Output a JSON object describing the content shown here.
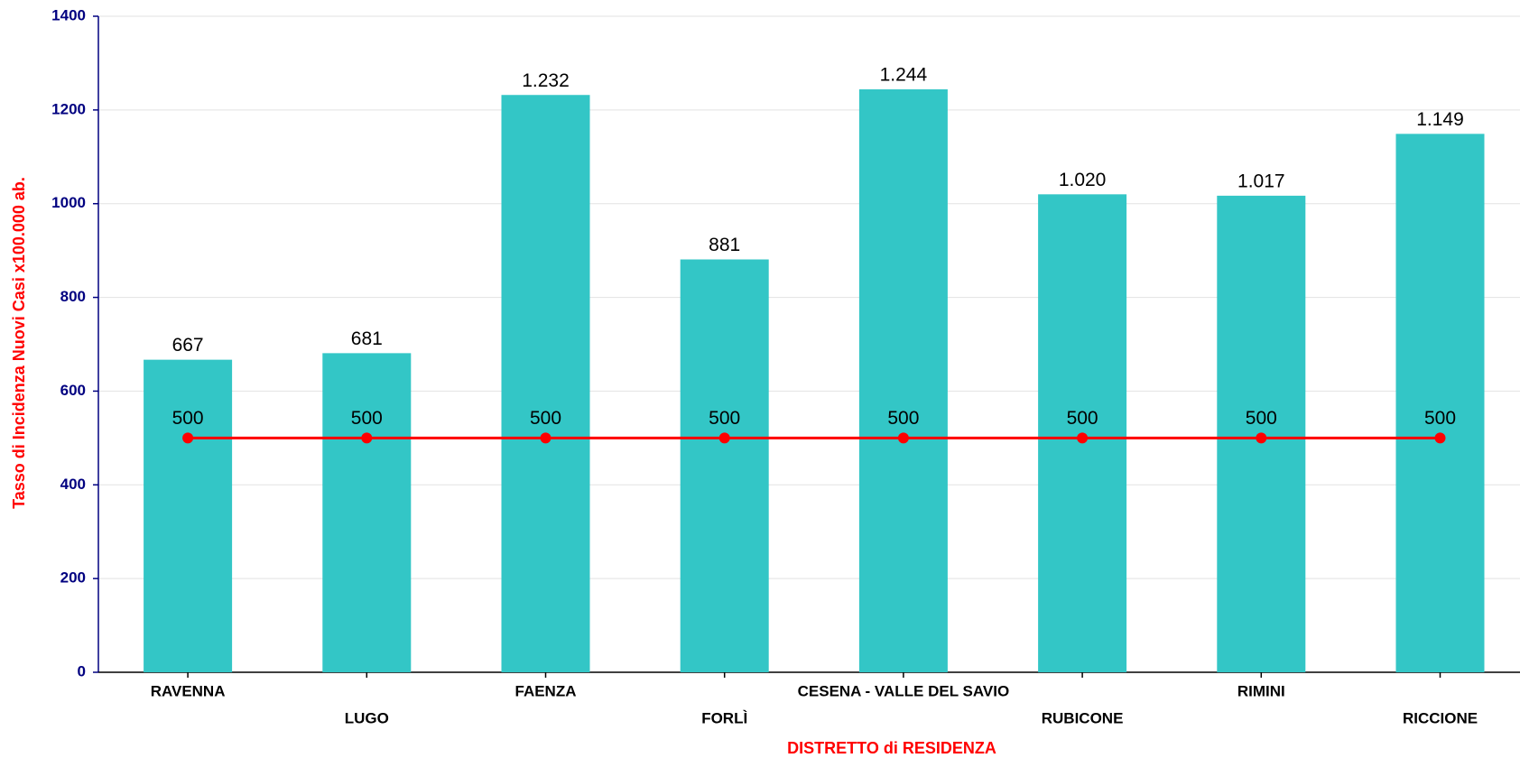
{
  "chart_data": {
    "type": "bar",
    "x_label": "DISTRETTO di RESIDENZA",
    "y_label": "Tasso di Incidenza Nuovi Casi x100.000 ab.",
    "categories": [
      "RAVENNA",
      "LUGO",
      "FAENZA",
      "FORLÌ",
      "CESENA - VALLE DEL SAVIO",
      "RUBICONE",
      "RIMINI",
      "RICCIONE"
    ],
    "series": [
      {
        "type": "bar",
        "color": "#33c6c6",
        "values": [
          667,
          681,
          1232,
          881,
          1244,
          1020,
          1017,
          1149
        ],
        "value_labels": [
          "667",
          "681",
          "1.232",
          "881",
          "1.244",
          "1.020",
          "1.017",
          "1.149"
        ]
      },
      {
        "type": "line",
        "color": "#ff0000",
        "values": [
          500,
          500,
          500,
          500,
          500,
          500,
          500,
          500
        ]
      }
    ],
    "ylim": [
      0,
      1400
    ],
    "yticks": [
      0,
      200,
      400,
      600,
      800,
      1000,
      1200,
      1400
    ],
    "grid": true
  }
}
